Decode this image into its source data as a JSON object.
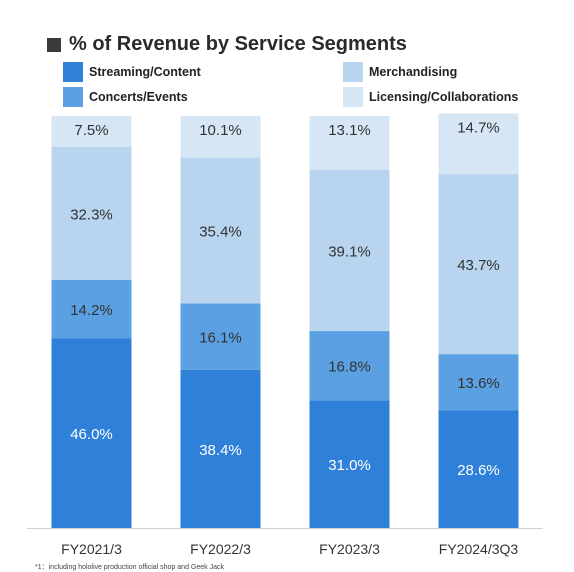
{
  "title": "% of Revenue by Service Segments",
  "colors": {
    "Streaming/Content": "#2f80d8",
    "Concerts/Events": "#5aa0e2",
    "Merchandising": "#b8d4ef",
    "Licensing/Collaborations": "#d6e6f5"
  },
  "legend": [
    {
      "label": "Streaming/Content"
    },
    {
      "label": "Merchandising"
    },
    {
      "label": "Concerts/Events"
    },
    {
      "label": "Licensing/Collaborations"
    }
  ],
  "footnote": "*1：including hololive production official shop and Geek Jack",
  "chart_data": {
    "type": "bar",
    "stacked": true,
    "title": "% of Revenue by Service Segments",
    "categories": [
      "FY2021/3",
      "FY2022/3",
      "FY2023/3",
      "FY2024/3Q3"
    ],
    "series": [
      {
        "name": "Streaming/Content",
        "values": [
          46.0,
          38.4,
          31.0,
          28.6
        ],
        "labels": [
          "46.0%",
          "38.4%",
          "31.0%",
          "28.6%"
        ]
      },
      {
        "name": "Concerts/Events",
        "values": [
          14.2,
          16.1,
          16.8,
          13.6
        ],
        "labels": [
          "14.2%",
          "16.1%",
          "16.8%",
          "13.6%"
        ]
      },
      {
        "name": "Merchandising",
        "values": [
          32.3,
          35.4,
          39.1,
          43.7
        ],
        "labels": [
          "32.3%",
          "35.4%",
          "39.1%",
          "43.7%"
        ]
      },
      {
        "name": "Licensing/Collaborations",
        "values": [
          7.5,
          10.1,
          13.1,
          14.7
        ],
        "labels": [
          "7.5%",
          "10.1%",
          "13.1%",
          "14.7%"
        ]
      }
    ],
    "ylim": [
      0,
      100
    ],
    "grid": false,
    "legend_position": "top"
  }
}
